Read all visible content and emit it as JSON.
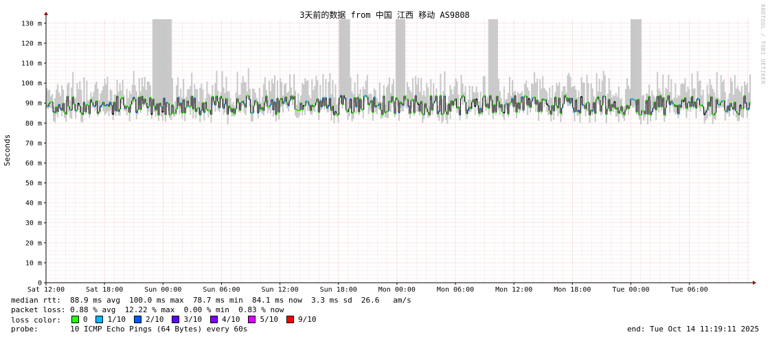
{
  "chart_data": {
    "type": "area",
    "title": "3天前的数据 from 中国 江西 移动 AS9808",
    "ylabel": "Seconds",
    "ylim": [
      0,
      132
    ],
    "y_ticks": [
      {
        "value": 0,
        "label": "0"
      },
      {
        "value": 10,
        "label": "10 m"
      },
      {
        "value": 20,
        "label": "20 m"
      },
      {
        "value": 30,
        "label": "30 m"
      },
      {
        "value": 40,
        "label": "40 m"
      },
      {
        "value": 50,
        "label": "50 m"
      },
      {
        "value": 60,
        "label": "60 m"
      },
      {
        "value": 70,
        "label": "70 m"
      },
      {
        "value": 80,
        "label": "80 m"
      },
      {
        "value": 90,
        "label": "90 m"
      },
      {
        "value": 100,
        "label": "100 m"
      },
      {
        "value": 110,
        "label": "110 m"
      },
      {
        "value": 120,
        "label": "120 m"
      },
      {
        "value": 130,
        "label": "130 m"
      }
    ],
    "x_range_hours": [
      0,
      72.3
    ],
    "x_ticks": [
      {
        "hour": 0,
        "label": "Sat 12:00"
      },
      {
        "hour": 6,
        "label": "Sat 18:00"
      },
      {
        "hour": 12,
        "label": "Sun 00:00"
      },
      {
        "hour": 18,
        "label": "Sun 06:00"
      },
      {
        "hour": 24,
        "label": "Sun 12:00"
      },
      {
        "hour": 30,
        "label": "Sun 18:00"
      },
      {
        "hour": 36,
        "label": "Mon 00:00"
      },
      {
        "hour": 42,
        "label": "Mon 06:00"
      },
      {
        "hour": 48,
        "label": "Mon 12:00"
      },
      {
        "hour": 54,
        "label": "Mon 18:00"
      },
      {
        "hour": 60,
        "label": "Tue 00:00"
      },
      {
        "hour": 66,
        "label": "Tue 06:00"
      }
    ],
    "grid": true,
    "series_summary": {
      "median_rtt_ms": 88.9,
      "spread_max_ms": 132,
      "spike_hours": [
        11.4,
        12.3,
        30.6,
        36.3,
        45.8,
        60.5
      ]
    },
    "stats": {
      "median_rtt": "median rtt:  88.9 ms avg  100.0 ms max  78.7 ms min  84.1 ms now  3.3 ms sd  26.6   am/s",
      "packet_loss": "packet loss: 0.88 % avg  12.22 % max  0.00 % min  0.83 % now"
    },
    "legend": {
      "label": "loss color:",
      "items": [
        {
          "label": "0",
          "color": "#26ff00"
        },
        {
          "label": "1/10",
          "color": "#00b8ff"
        },
        {
          "label": "2/10",
          "color": "#0059ff"
        },
        {
          "label": "3/10",
          "color": "#5e00ff"
        },
        {
          "label": "4/10",
          "color": "#7e00ff"
        },
        {
          "label": "5/10",
          "color": "#dd00ff"
        },
        {
          "label": "9/10",
          "color": "#ff0000"
        }
      ]
    },
    "probe": "probe:       10 ICMP Echo Pings (64 Bytes) every 60s",
    "end": "end: Tue Oct 14 11:19:11 2025",
    "watermark": "RRDTOOL / TOBI OETIKER"
  }
}
